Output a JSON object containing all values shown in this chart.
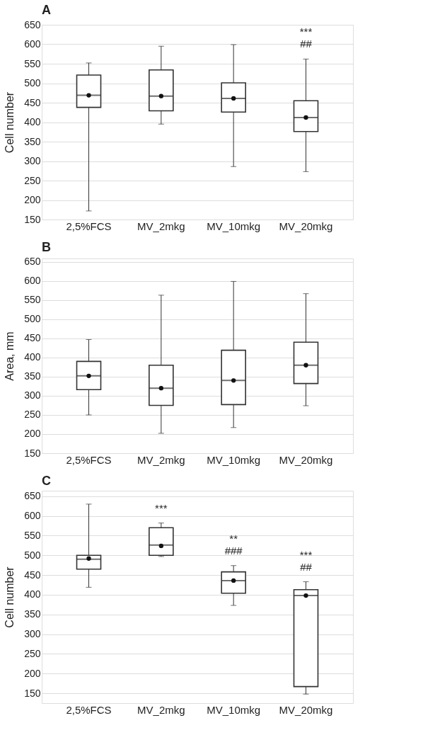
{
  "chart_data": [
    {
      "type": "box",
      "title": "A",
      "ylabel": "Cell number",
      "categories": [
        "2,5%FCS",
        "MV_2mkg",
        "MV_10mkg",
        "MV_20mkg"
      ],
      "color": "#333333",
      "ylim": [
        150,
        650
      ],
      "yticks": [
        150,
        200,
        250,
        300,
        350,
        400,
        450,
        500,
        550,
        600,
        650
      ],
      "grid": "y",
      "boxes": [
        {
          "low": 172,
          "q1": 438,
          "median": 469,
          "q3": 521,
          "high": 552,
          "mean": 469
        },
        {
          "low": 395,
          "q1": 429,
          "median": 467,
          "q3": 534,
          "high": 595,
          "mean": 467
        },
        {
          "low": 286,
          "q1": 426,
          "median": 461,
          "q3": 501,
          "high": 599,
          "mean": 461
        },
        {
          "low": 273,
          "q1": 376,
          "median": 412,
          "q3": 455,
          "high": 562,
          "mean": 412
        }
      ],
      "annotations": [
        {
          "text": "***",
          "x": "MV_20mkg",
          "y": 562
        },
        {
          "text": "##",
          "x": "MV_20mkg",
          "y": 562
        }
      ]
    },
    {
      "type": "box",
      "title": "B",
      "ylabel": "Area, mm",
      "categories": [
        "2,5%FCS",
        "MV_2mkg",
        "MV_10mkg",
        "MV_20mkg"
      ],
      "color": "#333333",
      "ylim": [
        150,
        659
      ],
      "yticks": [
        150,
        200,
        250,
        300,
        350,
        400,
        450,
        500,
        550,
        600,
        650
      ],
      "grid": "y",
      "boxes": [
        {
          "low": 250,
          "q1": 316,
          "median": 352,
          "q3": 390,
          "high": 447,
          "mean": 352
        },
        {
          "low": 202,
          "q1": 275,
          "median": 320,
          "q3": 380,
          "high": 563,
          "mean": 320
        },
        {
          "low": 217,
          "q1": 277,
          "median": 340,
          "q3": 419,
          "high": 599,
          "mean": 340
        },
        {
          "low": 274,
          "q1": 332,
          "median": 380,
          "q3": 440,
          "high": 567,
          "mean": 380
        }
      ]
    },
    {
      "type": "box",
      "title": "C",
      "ylabel": "Cell number",
      "categories": [
        "2,5%FCS",
        "MV_2mkg",
        "MV_10mkg",
        "MV_20mkg"
      ],
      "color": "#333333",
      "ylim": [
        125,
        664
      ],
      "yticks": [
        150,
        200,
        250,
        300,
        350,
        400,
        450,
        500,
        550,
        600,
        650
      ],
      "grid": "y",
      "boxes": [
        {
          "low": 419,
          "q1": 465,
          "median": 490,
          "q3": 500,
          "high": 630,
          "mean": 492
        },
        {
          "low": 497,
          "q1": 500,
          "median": 526,
          "q3": 570,
          "high": 582,
          "mean": 524
        },
        {
          "low": 373,
          "q1": 404,
          "median": 436,
          "q3": 458,
          "high": 474,
          "mean": 436
        },
        {
          "low": 148,
          "q1": 167,
          "median": 398,
          "q3": 413,
          "high": 433,
          "mean": 398
        }
      ],
      "annotations": [
        {
          "text": "***",
          "x": "MV_2mkg",
          "y": 582
        },
        {
          "text": "**",
          "x": "MV_10mkg",
          "y": 474
        },
        {
          "text": "###",
          "x": "MV_10mkg",
          "y": 474
        },
        {
          "text": "***",
          "x": "MV_20mkg",
          "y": 433
        },
        {
          "text": "##",
          "x": "MV_20mkg",
          "y": 433
        }
      ]
    }
  ]
}
